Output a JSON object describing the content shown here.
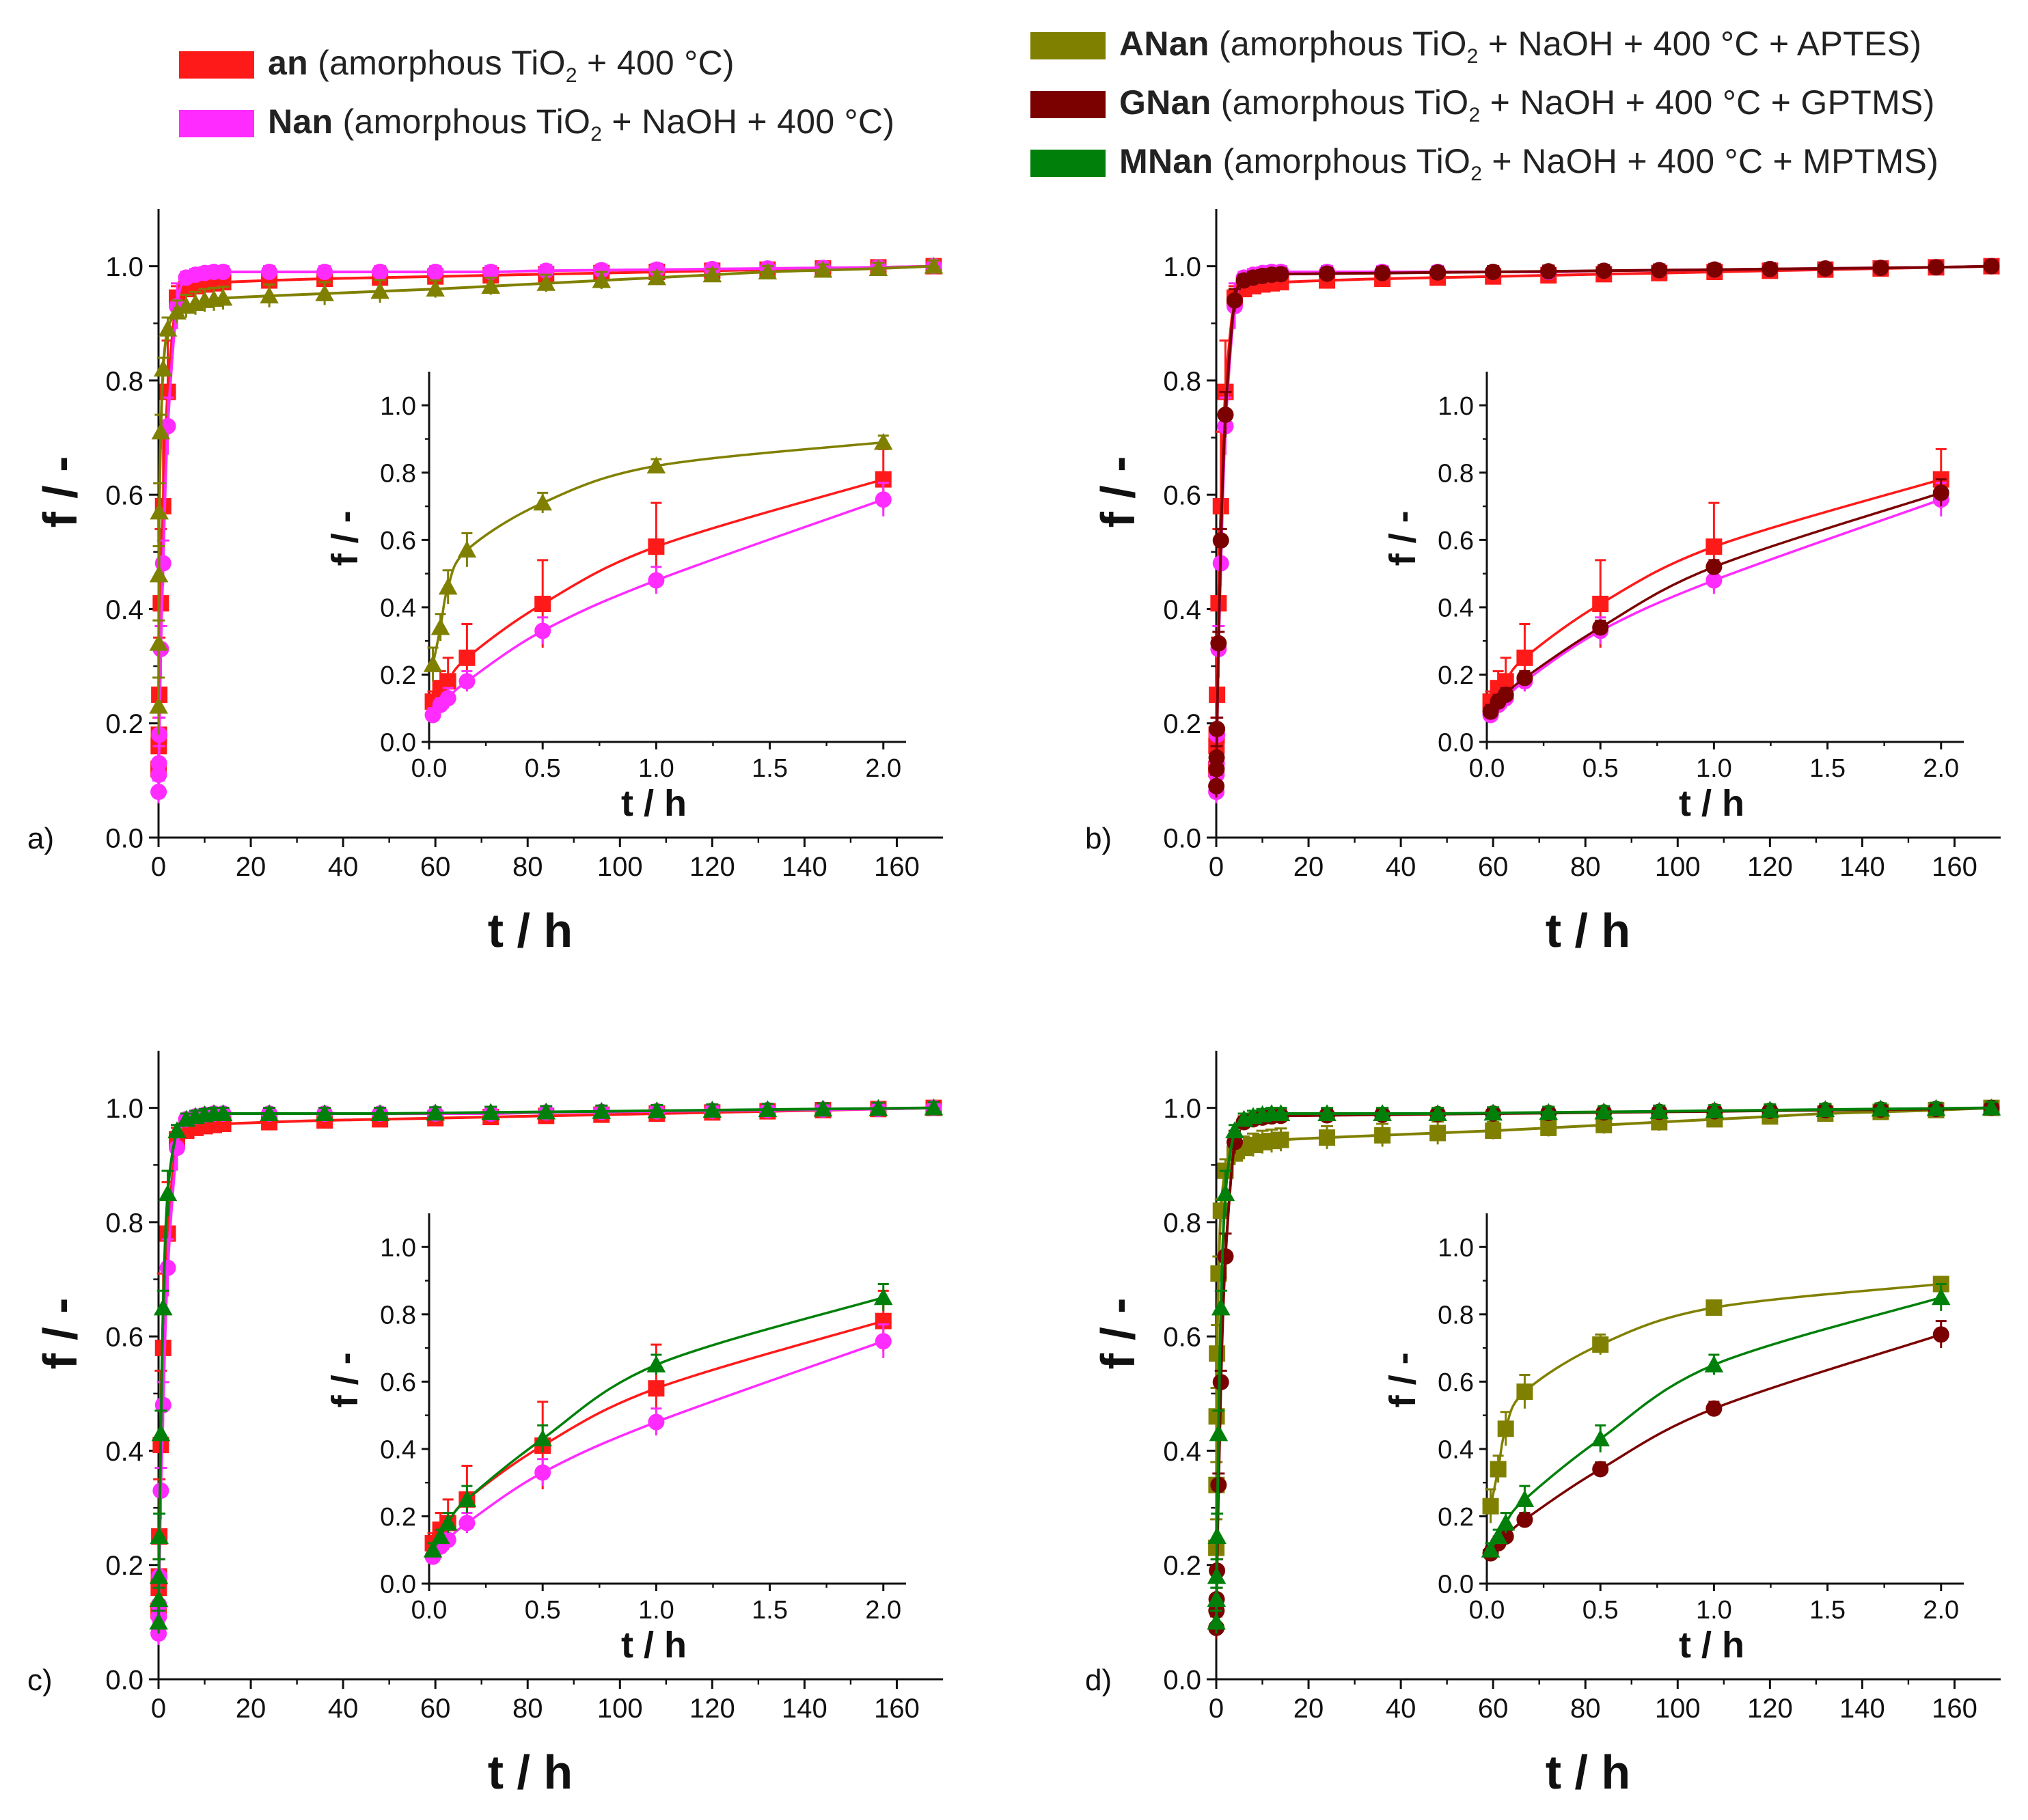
{
  "colors": {
    "an": "#ff1a1a",
    "Nan": "#ff2bff",
    "ANan": "#808000",
    "GNan": "#7b0000",
    "MNan": "#00800a"
  },
  "legend": [
    {
      "key": "an",
      "name": "an",
      "pre": " (amorphous TiO",
      "sub": "2",
      "post": " + 400 °C)"
    },
    {
      "key": "Nan",
      "name": "Nan",
      "pre": " (amorphous TiO",
      "sub": "2",
      "post": " + NaOH + 400 °C)"
    },
    {
      "key": "ANan",
      "name": "ANan",
      "pre": " (amorphous TiO",
      "sub": "2",
      "post": " + NaOH + 400 °C + APTES)"
    },
    {
      "key": "GNan",
      "name": "GNan",
      "pre": " (amorphous TiO",
      "sub": "2",
      "post": " + NaOH + 400 °C + GPTMS)"
    },
    {
      "key": "MNan",
      "name": "MNan",
      "pre": " (amorphous TiO",
      "sub": "2",
      "post": " + NaOH + 400 °C + MPTMS)"
    }
  ],
  "chart_data": {
    "type": "scatter",
    "xlabel": "t / h",
    "ylabel": "f / -",
    "inset_xlabel": "t / h",
    "inset_ylabel": "f / -",
    "xlim": [
      0,
      170
    ],
    "ylim": [
      0,
      1.1
    ],
    "xticks": [
      "0",
      "20",
      "40",
      "60",
      "80",
      "100",
      "120",
      "140",
      "160"
    ],
    "yticks": [
      "0.0",
      "0.2",
      "0.4",
      "0.6",
      "0.8",
      "1.0"
    ],
    "inset_xlim": [
      0,
      2.1
    ],
    "inset_ylim": [
      0,
      1.1
    ],
    "inset_xticks": [
      "0.0",
      "0.5",
      "1.0",
      "1.5",
      "2.0"
    ],
    "inset_yticks": [
      "0.0",
      "0.2",
      "0.4",
      "0.6",
      "0.8",
      "1.0"
    ],
    "x": [
      0.0167,
      0.05,
      0.0833,
      0.1667,
      0.5,
      1,
      2,
      4,
      6,
      8,
      10,
      12,
      14,
      24,
      36,
      48,
      60,
      72,
      84,
      96,
      108,
      120,
      132,
      144,
      156,
      168
    ],
    "series": {
      "an": {
        "name": "an",
        "marker": "square",
        "values": [
          0.12,
          0.16,
          0.18,
          0.25,
          0.41,
          0.58,
          0.78,
          0.945,
          0.96,
          0.965,
          0.968,
          0.97,
          0.972,
          0.975,
          0.978,
          0.98,
          0.982,
          0.984,
          0.986,
          0.988,
          0.99,
          0.992,
          0.994,
          0.996,
          0.998,
          1.0
        ],
        "err": [
          0.03,
          0.05,
          0.07,
          0.1,
          0.13,
          0.13,
          0.09,
          0.02,
          0.01,
          0.01,
          0.01,
          0.01,
          0.01,
          0.01,
          0.01,
          0.01,
          0.01,
          0.01,
          0.01,
          0.01,
          0.01,
          0.01,
          0.01,
          0.01,
          0.01,
          0.01
        ]
      },
      "Nan": {
        "name": "Nan",
        "marker": "circle",
        "values": [
          0.08,
          0.11,
          0.13,
          0.18,
          0.33,
          0.48,
          0.72,
          0.93,
          0.98,
          0.985,
          0.988,
          0.99,
          0.99,
          0.99,
          0.99,
          0.99,
          0.99,
          0.99,
          0.992,
          0.993,
          0.994,
          0.995,
          0.996,
          0.997,
          0.998,
          1.0
        ],
        "err": [
          0.02,
          0.02,
          0.03,
          0.03,
          0.04,
          0.04,
          0.05,
          0.04,
          0.01,
          0.01,
          0.01,
          0.01,
          0.01,
          0.01,
          0.01,
          0.01,
          0.01,
          0.01,
          0.01,
          0.01,
          0.01,
          0.01,
          0.01,
          0.01,
          0.01,
          0.01
        ]
      },
      "ANan": {
        "name": "ANan",
        "marker": "triangle",
        "values": [
          0.23,
          0.34,
          0.46,
          0.57,
          0.71,
          0.82,
          0.89,
          0.92,
          0.93,
          0.935,
          0.94,
          0.942,
          0.944,
          0.948,
          0.952,
          0.956,
          0.96,
          0.965,
          0.97,
          0.975,
          0.98,
          0.985,
          0.99,
          0.993,
          0.996,
          1.0
        ],
        "err": [
          0.05,
          0.04,
          0.05,
          0.05,
          0.03,
          0.02,
          0.02,
          0.02,
          0.02,
          0.02,
          0.02,
          0.02,
          0.02,
          0.02,
          0.02,
          0.02,
          0.015,
          0.015,
          0.015,
          0.015,
          0.01,
          0.01,
          0.01,
          0.01,
          0.01,
          0.01
        ]
      },
      "GNan": {
        "name": "GNan",
        "marker": "circle",
        "values": [
          0.09,
          0.12,
          0.14,
          0.19,
          0.34,
          0.52,
          0.74,
          0.94,
          0.975,
          0.98,
          0.983,
          0.985,
          0.986,
          0.987,
          0.988,
          0.989,
          0.99,
          0.991,
          0.992,
          0.993,
          0.994,
          0.995,
          0.996,
          0.997,
          0.998,
          1.0
        ],
        "err": [
          0.02,
          0.02,
          0.02,
          0.02,
          0.02,
          0.02,
          0.04,
          0.02,
          0.01,
          0.01,
          0.01,
          0.01,
          0.01,
          0.01,
          0.01,
          0.01,
          0.01,
          0.01,
          0.01,
          0.01,
          0.01,
          0.01,
          0.01,
          0.01,
          0.01,
          0.01
        ]
      },
      "MNan": {
        "name": "MNan",
        "marker": "triangle",
        "values": [
          0.1,
          0.14,
          0.18,
          0.25,
          0.43,
          0.65,
          0.85,
          0.96,
          0.98,
          0.985,
          0.988,
          0.99,
          0.99,
          0.99,
          0.99,
          0.99,
          0.991,
          0.992,
          0.993,
          0.994,
          0.995,
          0.996,
          0.997,
          0.998,
          0.999,
          1.0
        ],
        "err": [
          0.02,
          0.02,
          0.03,
          0.04,
          0.04,
          0.03,
          0.04,
          0.01,
          0.01,
          0.01,
          0.01,
          0.01,
          0.01,
          0.01,
          0.01,
          0.01,
          0.01,
          0.01,
          0.01,
          0.01,
          0.01,
          0.01,
          0.01,
          0.01,
          0.01,
          0.01
        ]
      }
    },
    "panels": [
      {
        "label": "a)",
        "series": [
          "an",
          "Nan",
          "ANan"
        ]
      },
      {
        "label": "b)",
        "series": [
          "an",
          "Nan",
          "GNan"
        ]
      },
      {
        "label": "c)",
        "series": [
          "an",
          "Nan",
          "MNan"
        ]
      },
      {
        "label": "d)",
        "series": [
          "ANan",
          "GNan",
          "MNan"
        ],
        "marker_override": {
          "ANan": "square",
          "GNan": "circle",
          "MNan": "triangle"
        }
      }
    ]
  }
}
